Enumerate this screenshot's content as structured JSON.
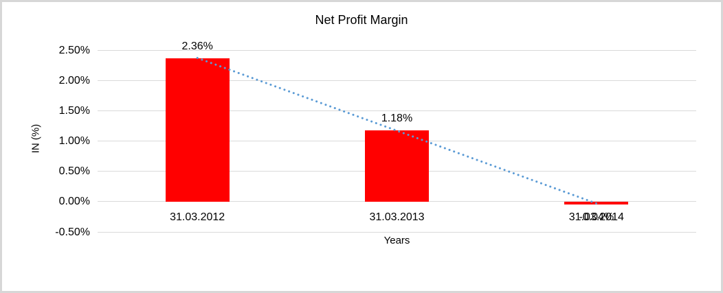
{
  "chart_data": {
    "type": "bar",
    "title": "Net Profit Margin",
    "xlabel": "Years",
    "ylabel": "IN (%)",
    "categories": [
      "31.03.2012",
      "31.03.2013",
      "31.03.2014"
    ],
    "values": [
      2.36,
      1.18,
      -0.04
    ],
    "data_labels": [
      "2.36%",
      "1.18%",
      "-0.04%"
    ],
    "y_ticks": [
      2.5,
      2.0,
      1.5,
      1.0,
      0.5,
      0.0,
      -0.5
    ],
    "y_tick_labels": [
      "2.50%",
      "2.00%",
      "1.50%",
      "1.00%",
      "0.50%",
      "0.00%",
      "-0.50%"
    ],
    "ylim": [
      -0.5,
      2.5
    ],
    "grid": true,
    "legend": "none",
    "bar_color": "#ff0000",
    "gridline_color": "#d9d9d9",
    "text_color": "#000000",
    "frame_border_color": "#d7d7d7",
    "trendline": {
      "type": "linear",
      "style": "dotted",
      "color": "#5b9bd5",
      "start_value": 2.37,
      "end_value": -0.03
    }
  }
}
